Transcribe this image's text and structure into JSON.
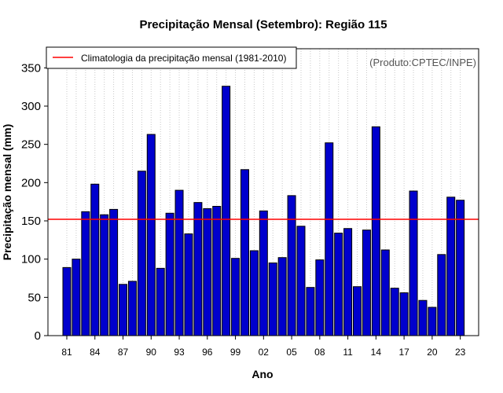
{
  "chart_data": {
    "type": "bar",
    "title": "Precipitação Mensal (Setembro): Região 115",
    "xlabel": "Ano",
    "ylabel": "Precipitação mensal (mm)",
    "ylim": [
      0,
      375
    ],
    "yticks": [
      0,
      50,
      100,
      150,
      200,
      250,
      300,
      350
    ],
    "categories": [
      "81",
      "82",
      "83",
      "84",
      "85",
      "86",
      "87",
      "88",
      "89",
      "90",
      "91",
      "92",
      "93",
      "94",
      "95",
      "96",
      "97",
      "98",
      "99",
      "00",
      "01",
      "02",
      "03",
      "04",
      "05",
      "06",
      "07",
      "08",
      "09",
      "10",
      "11",
      "12",
      "13",
      "14",
      "15",
      "16",
      "17",
      "18",
      "19",
      "20",
      "21",
      "22",
      "23"
    ],
    "xtick_labels": [
      "81",
      "84",
      "87",
      "90",
      "93",
      "96",
      "99",
      "02",
      "05",
      "08",
      "11",
      "14",
      "17",
      "20",
      "23"
    ],
    "values": [
      89,
      100,
      162,
      198,
      158,
      165,
      67,
      71,
      215,
      263,
      88,
      160,
      190,
      133,
      174,
      166,
      169,
      326,
      101,
      217,
      111,
      163,
      95,
      102,
      183,
      143,
      63,
      99,
      252,
      134,
      140,
      64,
      138,
      273,
      112,
      62,
      56,
      189,
      46,
      37,
      106,
      181,
      177
    ],
    "reference_line": {
      "value": 152,
      "label": "Climatologia da precipitação mensal (1981-2010)",
      "color": "#ff0000"
    },
    "bar_color": "#0000cd",
    "grid": "vertical dotted",
    "legend_position": "top-left",
    "credit": "(Produto:CPTEC/INPE)"
  }
}
